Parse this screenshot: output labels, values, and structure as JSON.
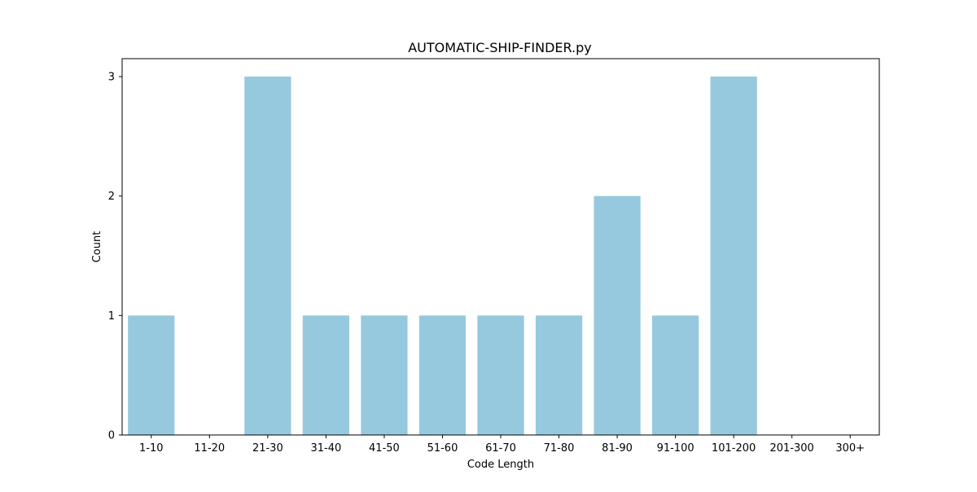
{
  "chart_data": {
    "type": "bar",
    "title": "AUTOMATIC-SHIP-FINDER.py",
    "xlabel": "Code Length",
    "ylabel": "Count",
    "categories": [
      "1-10",
      "11-20",
      "21-30",
      "31-40",
      "41-50",
      "51-60",
      "61-70",
      "71-80",
      "81-90",
      "91-100",
      "101-200",
      "201-300",
      "300+"
    ],
    "values": [
      1,
      0,
      3,
      1,
      1,
      1,
      1,
      1,
      2,
      1,
      3,
      0,
      0
    ],
    "ylim": [
      0,
      3.15
    ],
    "yticks": [
      "0",
      "1",
      "2",
      "3"
    ],
    "grid": false,
    "legend": "none",
    "bar_color": "#96c9de",
    "axis_color": "#000000"
  }
}
